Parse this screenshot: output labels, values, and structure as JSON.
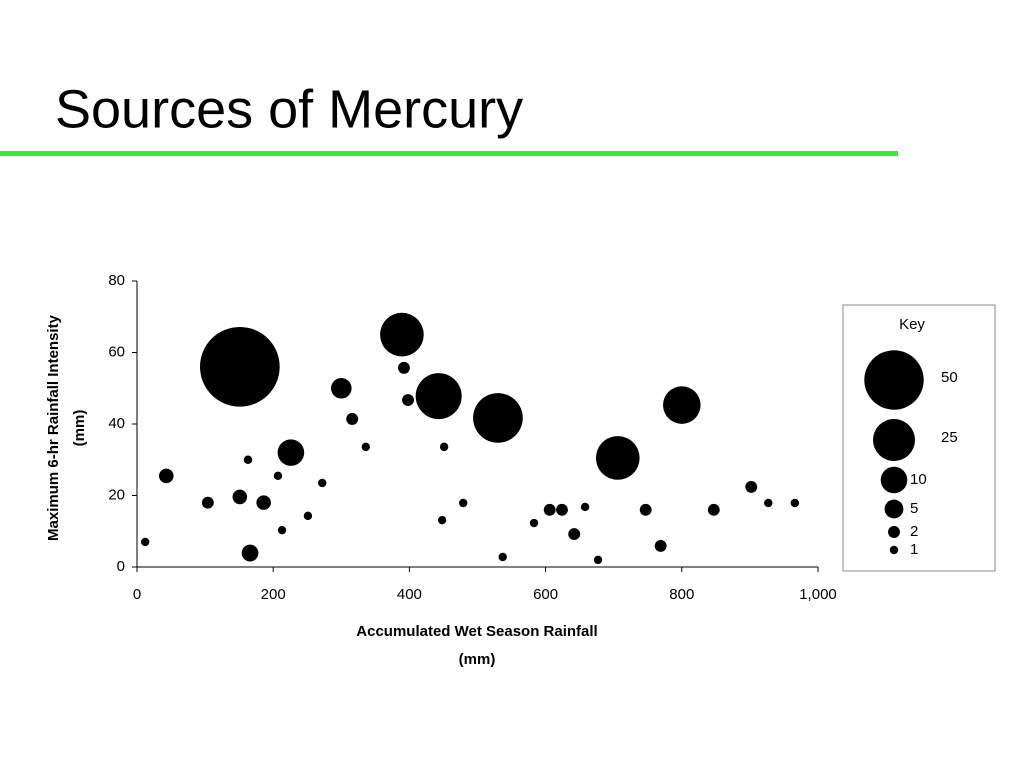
{
  "chart_data": {
    "type": "bubble",
    "title": "Sources of Mercury",
    "xlabel": [
      "Accumulated Wet Season Rainfall",
      "(mm)"
    ],
    "ylabel": [
      "Maximum 6-hr Rainfall Intensity",
      "(mm)"
    ],
    "x": [
      12,
      43,
      104,
      151,
      151,
      166,
      163,
      186,
      207,
      226,
      213,
      251,
      272,
      300,
      316,
      336,
      389,
      392,
      398,
      443,
      451,
      448,
      479,
      530,
      537,
      583,
      606,
      624,
      642,
      658,
      677,
      706,
      747,
      769,
      800,
      847,
      902,
      927,
      966
    ],
    "y": [
      7,
      25.5,
      18,
      56,
      19.6,
      3.9,
      30,
      18,
      25.5,
      32,
      10.3,
      14.3,
      23.5,
      50,
      41.4,
      33.6,
      65,
      55.7,
      46.7,
      47.8,
      33.6,
      13.1,
      17.9,
      41.7,
      2.8,
      12.3,
      16,
      16,
      9.2,
      16.8,
      2,
      30.5,
      16,
      5.9,
      45.3,
      16,
      22.4,
      17.9,
      17.9
    ],
    "sizes": [
      1,
      3,
      2,
      90,
      3,
      4,
      1,
      3,
      1,
      10,
      1,
      1,
      1,
      6,
      2,
      1,
      27,
      2,
      2,
      30,
      1,
      1,
      1,
      35,
      1,
      1,
      2,
      2,
      2,
      1,
      1,
      27,
      2,
      2,
      20,
      2,
      2,
      1,
      1
    ],
    "color": "#000000",
    "xlim": [
      0,
      1000
    ],
    "ylim": [
      0,
      80
    ],
    "xticks": [
      0,
      200,
      400,
      600,
      800,
      {
        "value": 1000,
        "label": "1,000"
      }
    ],
    "yticks": [
      0,
      20,
      40,
      60,
      80
    ],
    "size_legend": {
      "title": "Key",
      "sizes": [
        50,
        25,
        10,
        5,
        2,
        1
      ]
    }
  }
}
